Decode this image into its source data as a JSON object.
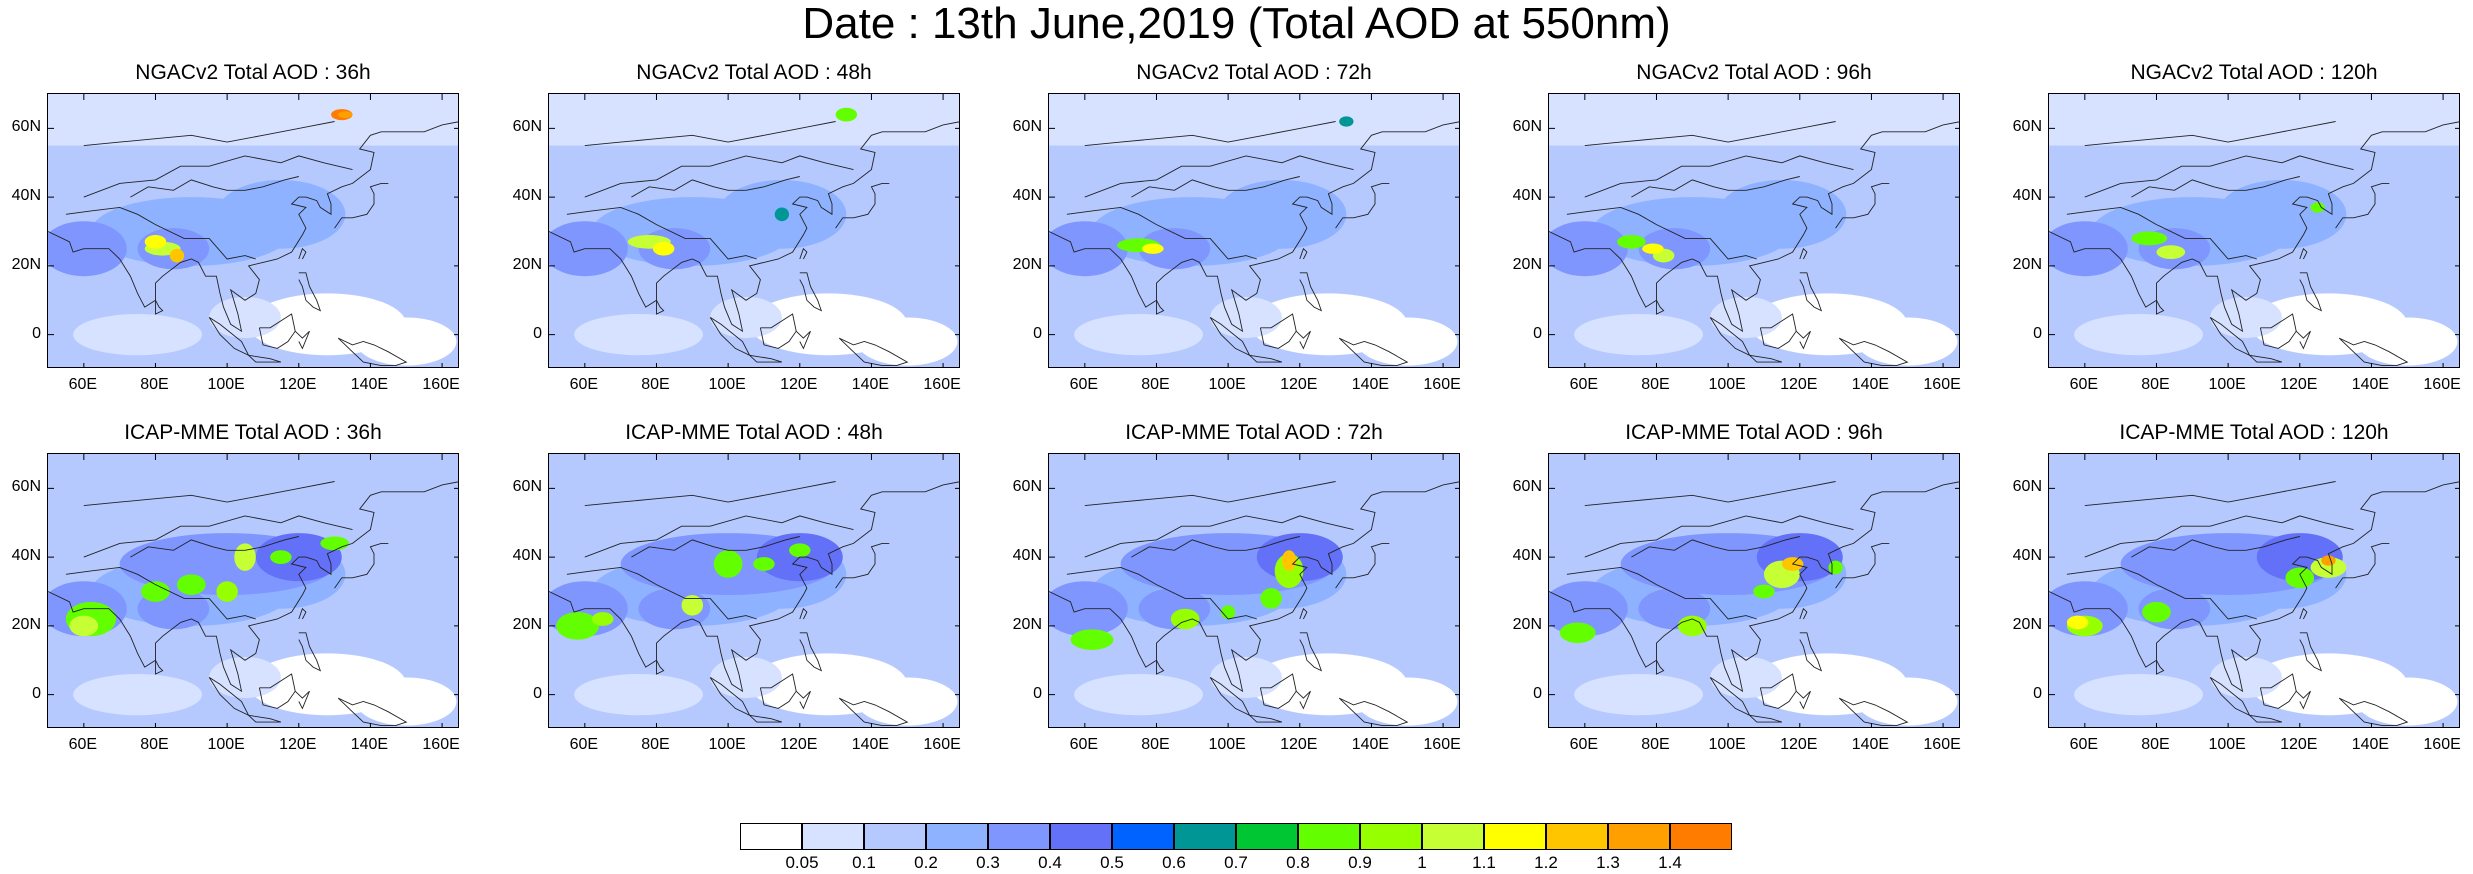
{
  "title": "Date : 13th June,2019 (Total AOD at 550nm)",
  "axes": {
    "lat_ticks": [
      "60N",
      "40N",
      "20N",
      "0"
    ],
    "lon_ticks": [
      "60E",
      "80E",
      "100E",
      "120E",
      "140E",
      "160E"
    ]
  },
  "panels": [
    {
      "title": "NGACv2 Total AOD : 36h"
    },
    {
      "title": "NGACv2 Total AOD : 48h"
    },
    {
      "title": "NGACv2 Total AOD : 72h"
    },
    {
      "title": "NGACv2 Total AOD : 96h"
    },
    {
      "title": "NGACv2 Total AOD : 120h"
    },
    {
      "title": "ICAP-MME Total AOD : 36h"
    },
    {
      "title": "ICAP-MME Total AOD : 48h"
    },
    {
      "title": "ICAP-MME Total AOD : 72h"
    },
    {
      "title": "ICAP-MME Total AOD : 96h"
    },
    {
      "title": "ICAP-MME Total AOD : 120h"
    }
  ],
  "colorbar": {
    "labels": [
      "0.05",
      "0.1",
      "0.2",
      "0.3",
      "0.4",
      "0.5",
      "0.6",
      "0.7",
      "0.8",
      "0.9",
      "1",
      "1.1",
      "1.2",
      "1.3",
      "1.4"
    ],
    "colors": [
      "#ffffff",
      "#d6e2ff",
      "#b5c9ff",
      "#8eb2ff",
      "#7f96ff",
      "#6370f8",
      "#0063ff",
      "#009696",
      "#00c633",
      "#63ff00",
      "#96ff00",
      "#c6ff33",
      "#ffff00",
      "#ffc600",
      "#ffa000",
      "#ff7c00",
      "#ff1900"
    ]
  }
}
